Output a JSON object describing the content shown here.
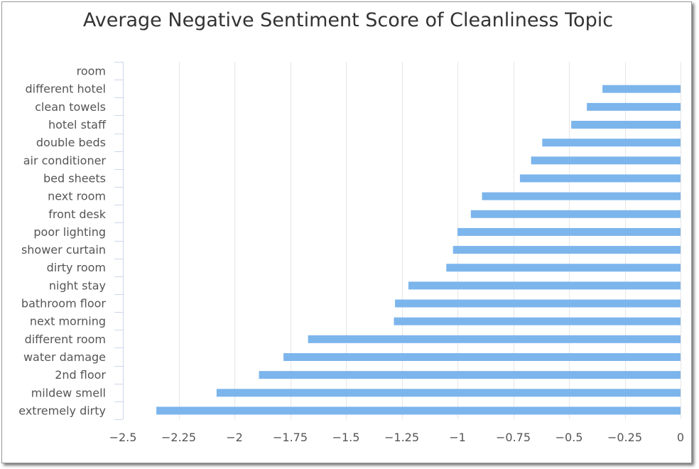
{
  "chart_data": {
    "type": "bar",
    "orientation": "horizontal",
    "title": "Average Negative Sentiment Score of Cleanliness Topic",
    "xlim": [
      -2.5,
      0
    ],
    "xticks": [
      -2.5,
      -2.25,
      -2,
      -1.75,
      -1.5,
      -1.25,
      -1,
      -0.75,
      -0.5,
      -0.25,
      0
    ],
    "xtick_labels": [
      "−2.5",
      "−2.25",
      "−2",
      "−1.75",
      "−1.5",
      "−1.25",
      "−1",
      "−0.75",
      "−0.5",
      "−0.25",
      "0"
    ],
    "grid": true,
    "bar_color": "#7cb5ec",
    "categories": [
      "room",
      "different hotel",
      "clean towels",
      "hotel staff",
      "double beds",
      "air conditioner",
      "bed sheets",
      "next room",
      "front desk",
      "poor lighting",
      "shower curtain",
      "dirty room",
      "night stay",
      "bathroom floor",
      "next morning",
      "different room",
      "water damage",
      "2nd floor",
      "mildew smell",
      "extremely dirty"
    ],
    "values": [
      0,
      -0.35,
      -0.42,
      -0.49,
      -0.62,
      -0.67,
      -0.72,
      -0.89,
      -0.94,
      -1.0,
      -1.02,
      -1.05,
      -1.22,
      -1.28,
      -1.285,
      -1.67,
      -1.78,
      -1.89,
      -2.08,
      -2.35
    ]
  }
}
